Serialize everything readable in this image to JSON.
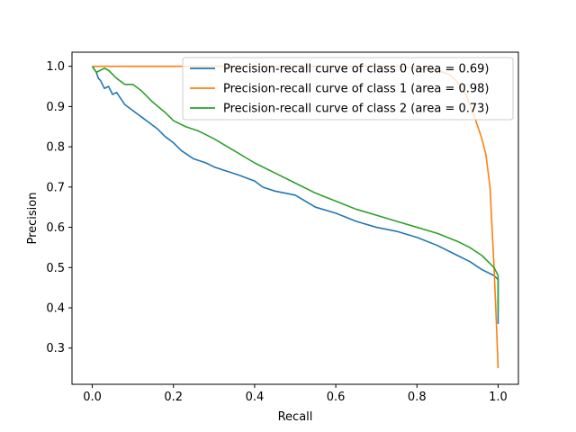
{
  "chart_data": {
    "type": "line",
    "title": "",
    "xlabel": "Recall",
    "ylabel": "Precision",
    "xlim": [
      -0.05,
      1.05
    ],
    "ylim": [
      0.21,
      1.035
    ],
    "xticks": [
      0.0,
      0.2,
      0.4,
      0.6,
      0.8,
      1.0
    ],
    "xtick_labels": [
      "0.0",
      "0.2",
      "0.4",
      "0.6",
      "0.8",
      "1.0"
    ],
    "yticks": [
      0.3,
      0.4,
      0.5,
      0.6,
      0.7,
      0.8,
      0.9,
      1.0
    ],
    "ytick_labels": [
      "0.3",
      "0.4",
      "0.5",
      "0.6",
      "0.7",
      "0.8",
      "0.9",
      "1.0"
    ],
    "grid": false,
    "legend_position": "top-right",
    "series": [
      {
        "name": "Precision-recall curve of class 0 (area = 0.69)",
        "color": "#1f77b4",
        "x": [
          0.0,
          0.01,
          0.015,
          0.02,
          0.03,
          0.04,
          0.05,
          0.06,
          0.07,
          0.08,
          0.1,
          0.12,
          0.14,
          0.16,
          0.18,
          0.2,
          0.22,
          0.25,
          0.28,
          0.3,
          0.33,
          0.36,
          0.4,
          0.42,
          0.45,
          0.5,
          0.55,
          0.6,
          0.65,
          0.7,
          0.75,
          0.8,
          0.85,
          0.9,
          0.93,
          0.96,
          0.98,
          0.99,
          1.0,
          1.0
        ],
        "y": [
          1.0,
          0.985,
          0.97,
          0.965,
          0.945,
          0.95,
          0.93,
          0.935,
          0.92,
          0.905,
          0.89,
          0.875,
          0.86,
          0.845,
          0.825,
          0.81,
          0.79,
          0.77,
          0.76,
          0.75,
          0.74,
          0.73,
          0.715,
          0.7,
          0.69,
          0.68,
          0.65,
          0.635,
          0.615,
          0.6,
          0.59,
          0.575,
          0.555,
          0.53,
          0.515,
          0.495,
          0.485,
          0.48,
          0.47,
          0.36
        ]
      },
      {
        "name": "Precision-recall curve of class 1 (area = 0.98)",
        "color": "#ff7f0e",
        "x": [
          0.0,
          0.2,
          0.4,
          0.6,
          0.75,
          0.8,
          0.85,
          0.88,
          0.9,
          0.92,
          0.94,
          0.96,
          0.97,
          0.98,
          0.985,
          0.99,
          0.995,
          1.0
        ],
        "y": [
          1.0,
          1.0,
          1.0,
          1.0,
          1.0,
          0.995,
          0.99,
          0.98,
          0.96,
          0.93,
          0.88,
          0.82,
          0.78,
          0.7,
          0.6,
          0.5,
          0.38,
          0.25
        ]
      },
      {
        "name": "Precision-recall curve of class 2 (area = 0.73)",
        "color": "#2ca02c",
        "x": [
          0.0,
          0.01,
          0.02,
          0.03,
          0.04,
          0.06,
          0.08,
          0.1,
          0.12,
          0.15,
          0.18,
          0.2,
          0.23,
          0.26,
          0.3,
          0.35,
          0.4,
          0.45,
          0.5,
          0.55,
          0.6,
          0.65,
          0.7,
          0.75,
          0.8,
          0.85,
          0.9,
          0.93,
          0.96,
          0.98,
          0.99,
          1.0,
          1.0
        ],
        "y": [
          1.0,
          0.985,
          0.99,
          0.995,
          0.99,
          0.97,
          0.955,
          0.955,
          0.94,
          0.91,
          0.885,
          0.865,
          0.85,
          0.84,
          0.82,
          0.79,
          0.76,
          0.735,
          0.71,
          0.685,
          0.665,
          0.645,
          0.63,
          0.615,
          0.6,
          0.585,
          0.565,
          0.55,
          0.53,
          0.51,
          0.5,
          0.48,
          0.39
        ]
      }
    ]
  }
}
